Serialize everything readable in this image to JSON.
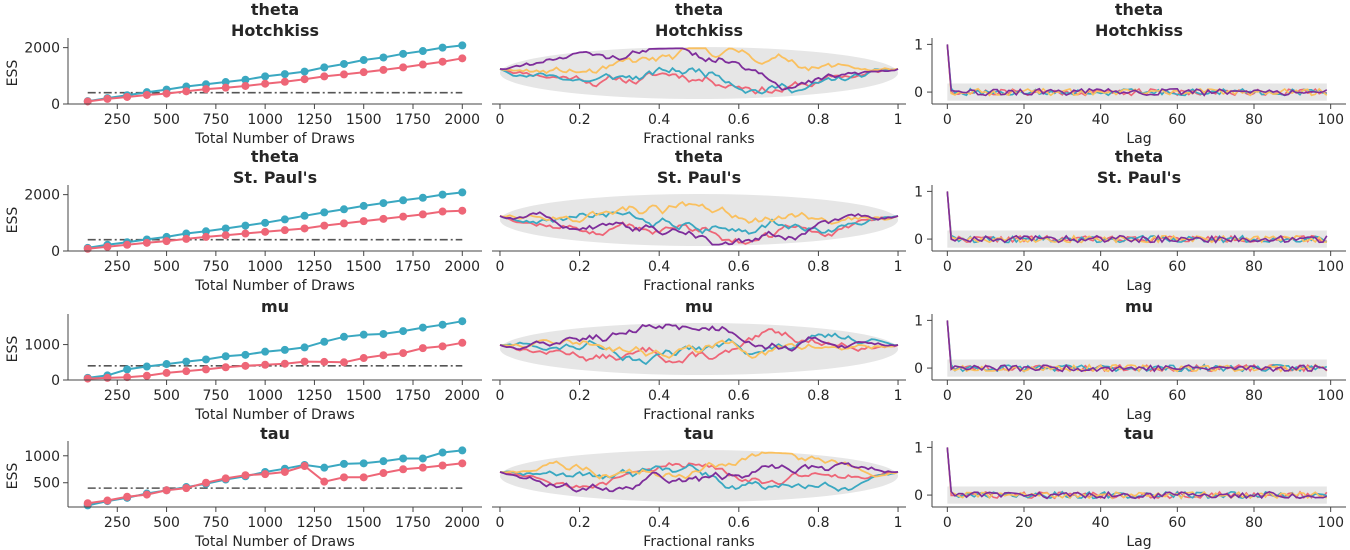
{
  "colors": {
    "chain_1": "#ee6677",
    "chain_2": "#3aa8c1",
    "chain_3": "#fac05e",
    "chain_4": "#7e2d9b",
    "band": "#e6e6e6",
    "reference_line": "#555555",
    "axis": "#444444"
  },
  "chart_data": [
    {
      "type": "line",
      "kind": "ess-evolution",
      "title": "theta",
      "subtitle": "Hotchkiss",
      "xlabel": "Total Number of Draws",
      "ylabel": "ESS",
      "xlim": [
        0,
        2100
      ],
      "ylim": [
        0,
        2200
      ],
      "xticks": [
        250,
        500,
        750,
        1000,
        1250,
        1500,
        1750,
        2000
      ],
      "yticks": [
        0,
        2000
      ],
      "x": [
        100,
        200,
        300,
        400,
        500,
        600,
        700,
        800,
        900,
        1000,
        1100,
        1200,
        1300,
        1400,
        1500,
        1600,
        1700,
        1800,
        1900,
        2000
      ],
      "series": [
        {
          "color": "chain_2",
          "values": [
            100,
            210,
            310,
            420,
            510,
            620,
            700,
            780,
            860,
            980,
            1060,
            1150,
            1300,
            1420,
            1560,
            1650,
            1780,
            1880,
            2000,
            2080
          ]
        },
        {
          "color": "chain_1",
          "values": [
            90,
            180,
            250,
            320,
            370,
            450,
            530,
            580,
            640,
            720,
            790,
            880,
            980,
            1050,
            1130,
            1210,
            1300,
            1400,
            1500,
            1620
          ]
        }
      ],
      "reference_line": 400,
      "grid": false
    },
    {
      "type": "line",
      "kind": "rank-ecdf",
      "title": "theta",
      "subtitle": "Hotchkiss",
      "xlabel": "Fractional ranks",
      "xlim": [
        -0.02,
        1.02
      ],
      "xticks": [
        0.0,
        0.2,
        0.4,
        0.6,
        0.8,
        1.0
      ],
      "seed": 11,
      "grid": false
    },
    {
      "type": "line",
      "kind": "autocorrelation",
      "title": "theta",
      "subtitle": "Hotchkiss",
      "xlabel": "Lag",
      "xlim": [
        -4,
        104
      ],
      "ylim": [
        -0.25,
        1.05
      ],
      "xticks": [
        0,
        20,
        40,
        60,
        80,
        100
      ],
      "yticks": [
        0,
        1
      ],
      "band": 0.18,
      "seed": 21,
      "grid": false
    },
    {
      "type": "line",
      "kind": "ess-evolution",
      "title": "theta",
      "subtitle": "St. Paul's",
      "xlabel": "Total Number of Draws",
      "ylabel": "ESS",
      "xlim": [
        0,
        2100
      ],
      "ylim": [
        0,
        2200
      ],
      "xticks": [
        250,
        500,
        750,
        1000,
        1250,
        1500,
        1750,
        2000
      ],
      "yticks": [
        0,
        2000
      ],
      "x": [
        100,
        200,
        300,
        400,
        500,
        600,
        700,
        800,
        900,
        1000,
        1100,
        1200,
        1300,
        1400,
        1500,
        1600,
        1700,
        1800,
        1900,
        2000
      ],
      "series": [
        {
          "color": "chain_2",
          "values": [
            110,
            220,
            310,
            410,
            500,
            620,
            700,
            800,
            900,
            1000,
            1120,
            1250,
            1370,
            1480,
            1600,
            1700,
            1800,
            1890,
            2000,
            2080
          ]
        },
        {
          "color": "chain_1",
          "values": [
            80,
            150,
            220,
            290,
            350,
            430,
            500,
            560,
            620,
            680,
            740,
            800,
            900,
            980,
            1060,
            1140,
            1220,
            1300,
            1400,
            1430
          ]
        }
      ],
      "reference_line": 400,
      "grid": false
    },
    {
      "type": "line",
      "kind": "rank-ecdf",
      "title": "theta",
      "subtitle": "St. Paul's",
      "xlabel": "Fractional ranks",
      "xlim": [
        -0.02,
        1.02
      ],
      "xticks": [
        0.0,
        0.2,
        0.4,
        0.6,
        0.8,
        1.0
      ],
      "seed": 12,
      "grid": false
    },
    {
      "type": "line",
      "kind": "autocorrelation",
      "title": "theta",
      "subtitle": "St. Paul's",
      "xlabel": "Lag",
      "xlim": [
        -4,
        104
      ],
      "ylim": [
        -0.25,
        1.05
      ],
      "xticks": [
        0,
        20,
        40,
        60,
        80,
        100
      ],
      "yticks": [
        0,
        1
      ],
      "band": 0.18,
      "seed": 22,
      "grid": false
    },
    {
      "type": "line",
      "kind": "ess-evolution",
      "title": "mu",
      "subtitle": "",
      "xlabel": "Total Number of Draws",
      "ylabel": "ESS",
      "xlim": [
        0,
        2100
      ],
      "ylim": [
        0,
        1750
      ],
      "xticks": [
        250,
        500,
        750,
        1000,
        1250,
        1500,
        1750,
        2000
      ],
      "yticks": [
        0,
        1000
      ],
      "x": [
        100,
        200,
        300,
        400,
        500,
        600,
        700,
        800,
        900,
        1000,
        1100,
        1200,
        1300,
        1400,
        1500,
        1600,
        1700,
        1800,
        1900,
        2000
      ],
      "series": [
        {
          "color": "chain_2",
          "values": [
            60,
            130,
            300,
            380,
            450,
            520,
            580,
            670,
            710,
            800,
            850,
            920,
            1080,
            1220,
            1280,
            1300,
            1380,
            1480,
            1560,
            1660
          ]
        },
        {
          "color": "chain_1",
          "values": [
            40,
            60,
            80,
            120,
            200,
            250,
            300,
            360,
            400,
            430,
            460,
            520,
            510,
            500,
            620,
            700,
            760,
            900,
            950,
            1050
          ]
        }
      ],
      "reference_line": 400,
      "grid": false
    },
    {
      "type": "line",
      "kind": "rank-ecdf",
      "title": "mu",
      "subtitle": "",
      "xlabel": "Fractional ranks",
      "xlim": [
        -0.02,
        1.02
      ],
      "xticks": [
        0.0,
        0.2,
        0.4,
        0.6,
        0.8,
        1.0
      ],
      "seed": 13,
      "grid": false
    },
    {
      "type": "line",
      "kind": "autocorrelation",
      "title": "mu",
      "subtitle": "",
      "xlabel": "Lag",
      "xlim": [
        -4,
        104
      ],
      "ylim": [
        -0.25,
        1.05
      ],
      "xticks": [
        0,
        20,
        40,
        60,
        80,
        100
      ],
      "yticks": [
        0,
        1
      ],
      "band": 0.18,
      "seed": 23,
      "grid": false
    },
    {
      "type": "line",
      "kind": "ess-evolution",
      "title": "tau",
      "subtitle": "",
      "xlabel": "Total Number of Draws",
      "ylabel": "ESS",
      "xlim": [
        0,
        2100
      ],
      "ylim": [
        50,
        1200
      ],
      "xticks": [
        250,
        500,
        750,
        1000,
        1250,
        1500,
        1750,
        2000
      ],
      "yticks": [
        500,
        1000
      ],
      "x": [
        100,
        200,
        300,
        400,
        500,
        600,
        700,
        800,
        900,
        1000,
        1100,
        1200,
        1300,
        1400,
        1500,
        1600,
        1700,
        1800,
        1900,
        2000
      ],
      "series": [
        {
          "color": "chain_2",
          "values": [
            80,
            160,
            220,
            300,
            360,
            420,
            480,
            560,
            620,
            700,
            760,
            830,
            780,
            850,
            860,
            900,
            950,
            950,
            1060,
            1100
          ]
        },
        {
          "color": "chain_1",
          "values": [
            120,
            170,
            240,
            280,
            360,
            400,
            500,
            580,
            640,
            660,
            700,
            810,
            520,
            600,
            600,
            680,
            750,
            780,
            820,
            860
          ]
        }
      ],
      "reference_line": 400,
      "grid": false
    },
    {
      "type": "line",
      "kind": "rank-ecdf",
      "title": "tau",
      "subtitle": "",
      "xlabel": "Fractional ranks",
      "xlim": [
        -0.02,
        1.02
      ],
      "xticks": [
        0.0,
        0.2,
        0.4,
        0.6,
        0.8,
        1.0
      ],
      "seed": 14,
      "grid": false
    },
    {
      "type": "line",
      "kind": "autocorrelation",
      "title": "tau",
      "subtitle": "",
      "xlabel": "Lag",
      "xlim": [
        -4,
        104
      ],
      "ylim": [
        -0.25,
        1.05
      ],
      "xticks": [
        0,
        20,
        40,
        60,
        80,
        100
      ],
      "yticks": [
        0,
        1
      ],
      "band": 0.18,
      "seed": 24,
      "grid": false
    }
  ]
}
